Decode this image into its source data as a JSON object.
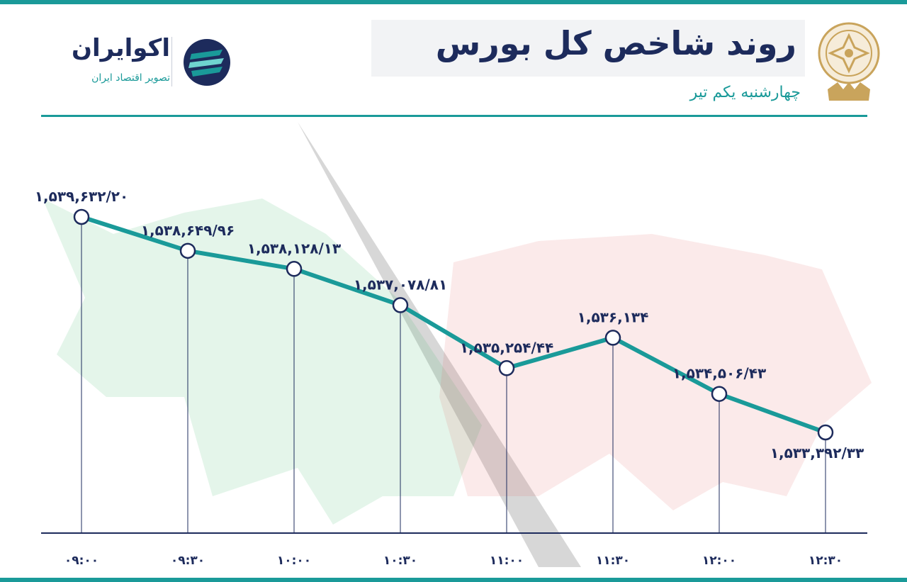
{
  "header": {
    "title": "روند شاخص کل بورس",
    "subtitle": "چهارشنبه یکم تیر"
  },
  "brand": {
    "name": "اکوایران",
    "tagline": "تصویر اقتصاد ایران"
  },
  "colors": {
    "accent": "#1a9a99",
    "navy": "#1d2b5c",
    "gold": "#c9a45c",
    "bull": "#2fae5b",
    "bear": "#e2595f"
  },
  "chart_data": {
    "type": "line",
    "x": [
      "09:00",
      "09:30",
      "10:00",
      "10:30",
      "11:00",
      "11:30",
      "12:00",
      "12:30"
    ],
    "tick_labels": [
      "۰۹:۰۰",
      "۰۹:۳۰",
      "۱۰:۰۰",
      "۱۰:۳۰",
      "۱۱:۰۰",
      "۱۱:۳۰",
      "۱۲:۰۰",
      "۱۲:۳۰"
    ],
    "values": [
      1539632.2,
      1538649.96,
      1538128.13,
      1537078.81,
      1535254.44,
      1536134,
      1534506.43,
      1533392.33
    ],
    "data_labels": [
      "۱,۵۳۹,۶۳۲/۲۰",
      "۱,۵۳۸,۶۴۹/۹۶",
      "۱,۵۳۸,۱۲۸/۱۳",
      "۱,۵۳۷,۰۷۸/۸۱",
      "۱,۵۳۵,۲۵۴/۴۴",
      "۱,۵۳۶,۱۳۴",
      "۱,۵۳۴,۵۰۶/۴۳",
      "۱,۵۳۳,۳۹۲/۳۳"
    ],
    "title": "روند شاخص کل بورس",
    "xlabel": "",
    "ylabel": "",
    "grid": false,
    "legend": "none"
  }
}
